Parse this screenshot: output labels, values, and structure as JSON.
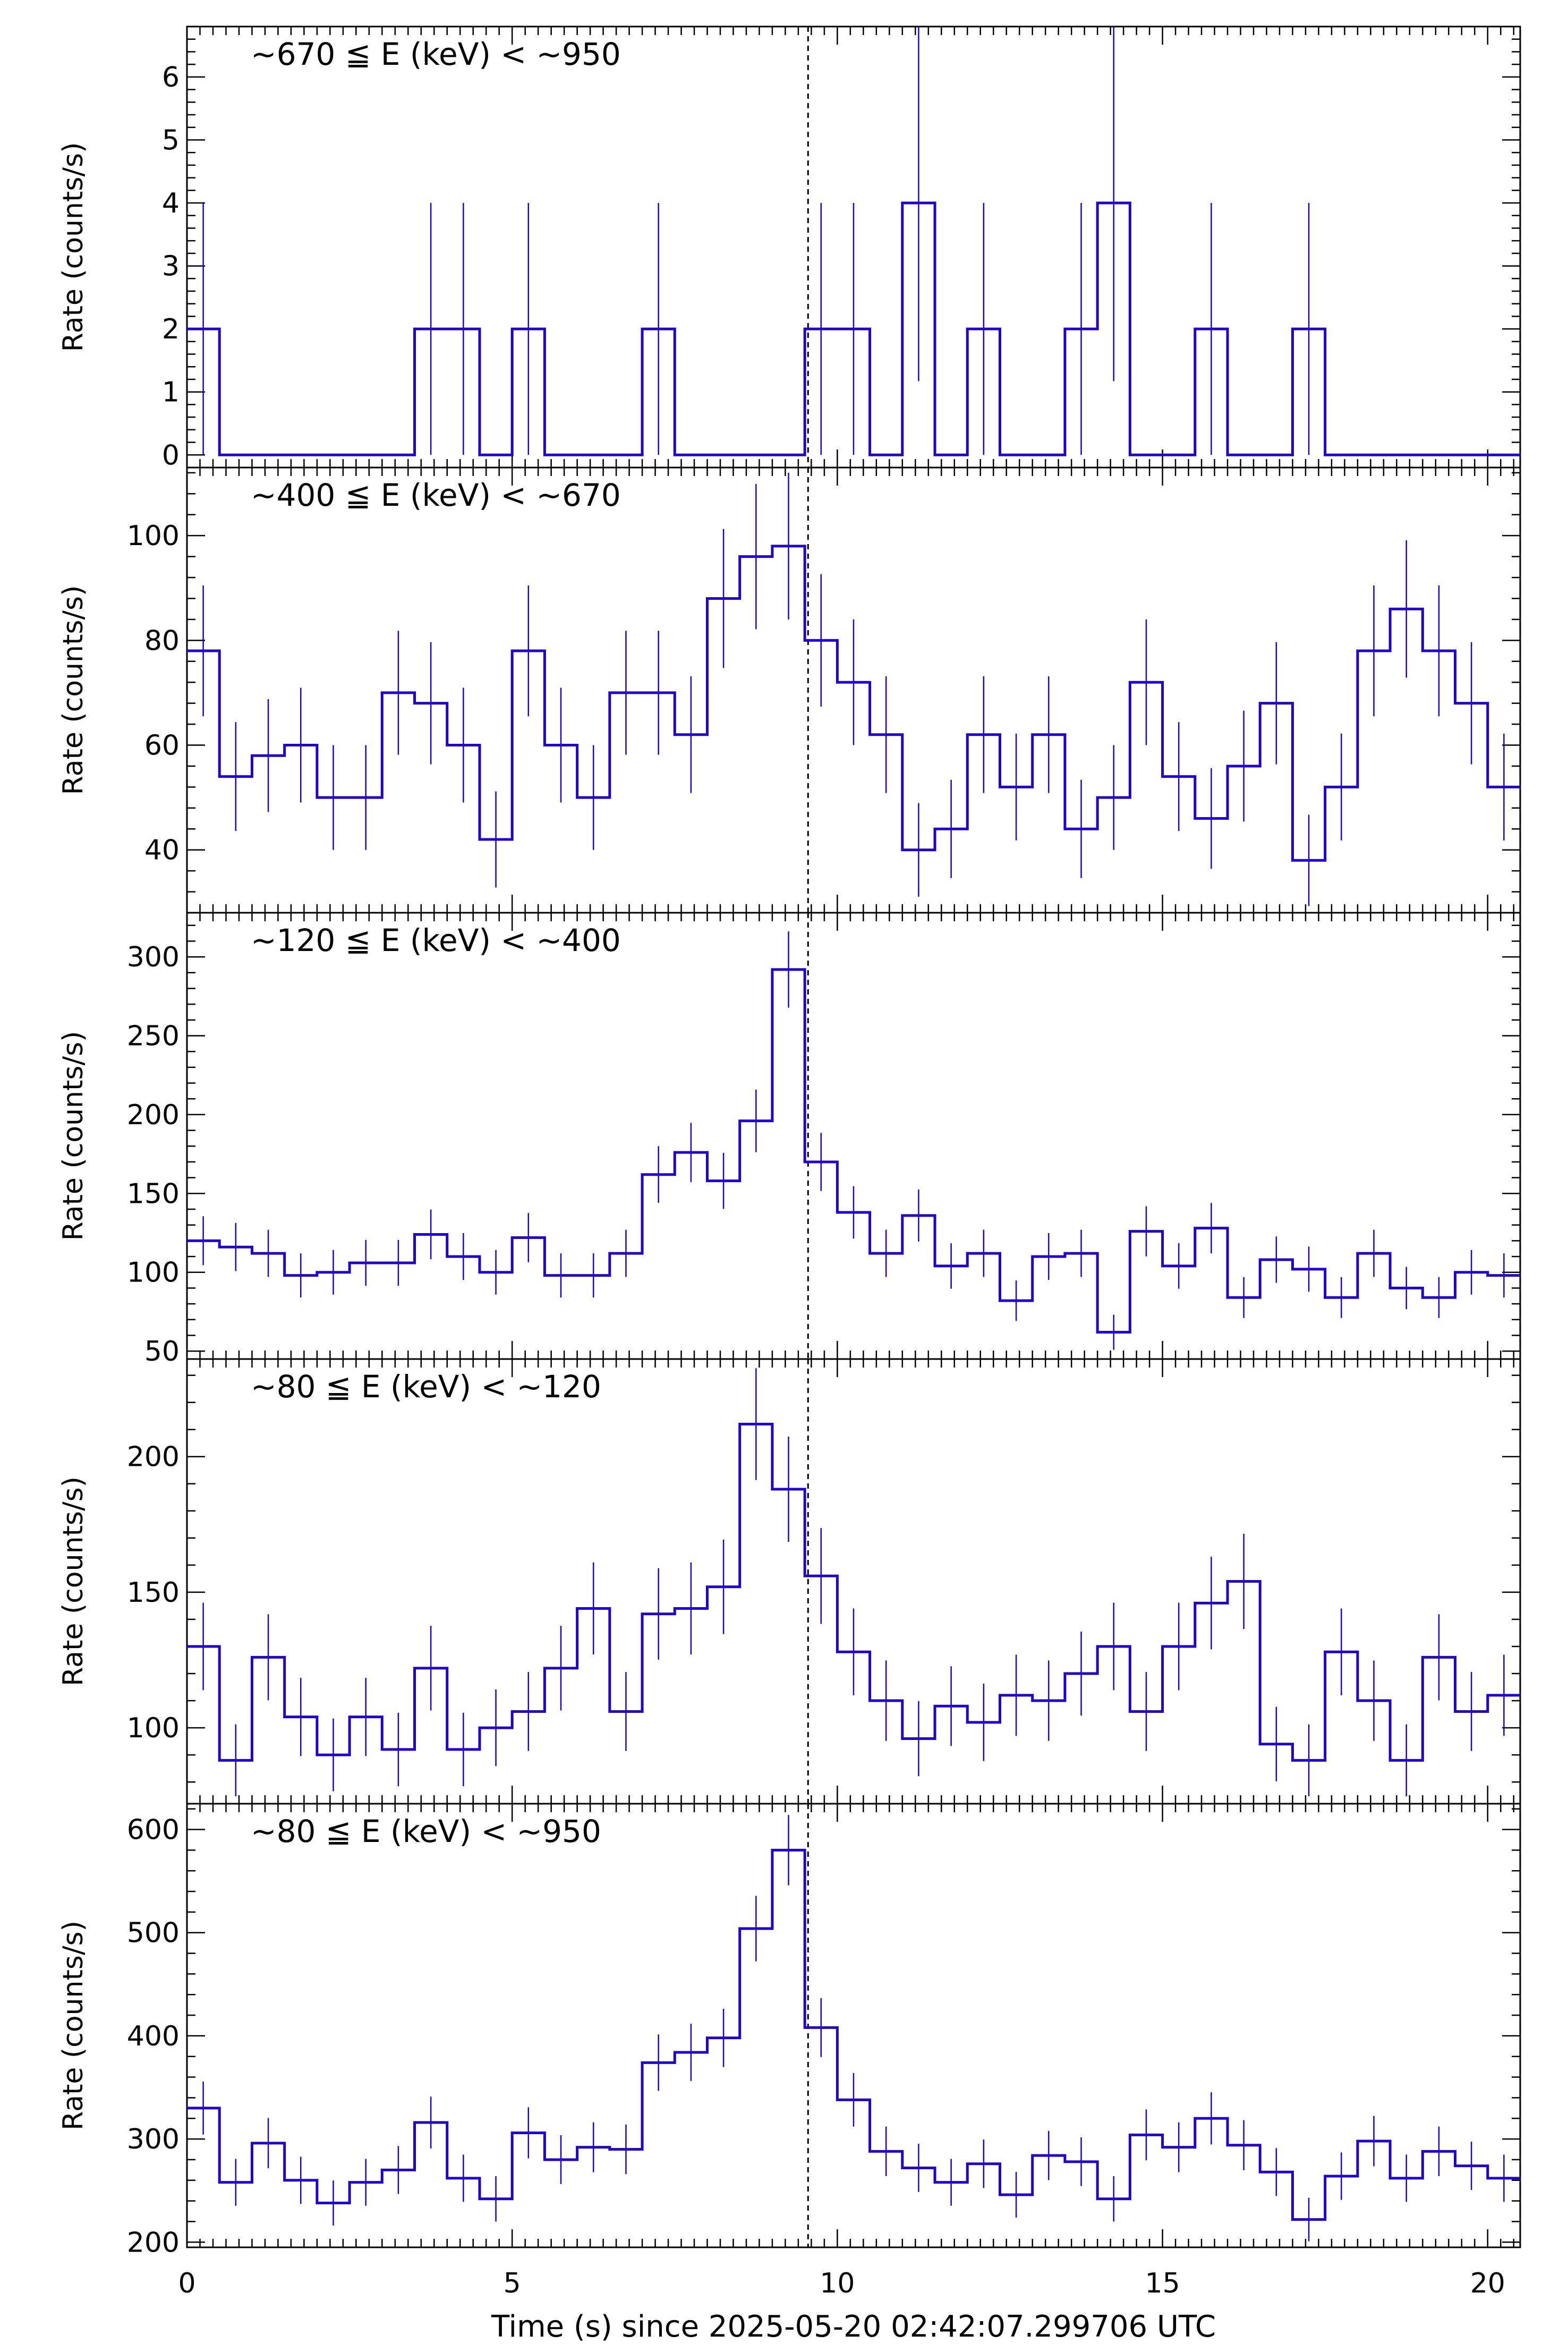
{
  "chart_data": [
    {
      "type": "line",
      "label": "~670 ≦ E (keV) < ~950",
      "ylabel": "Rate (counts/s)",
      "ylim": [
        -0.2,
        6.8
      ],
      "yticks": [
        0,
        1,
        2,
        3,
        4,
        5,
        6
      ],
      "color": "#2200cc",
      "values": [
        2,
        0,
        0,
        0,
        0,
        0,
        0,
        2,
        2,
        0,
        2,
        0,
        0,
        0,
        2,
        0,
        0,
        0,
        0,
        2,
        2,
        0,
        4,
        0,
        2,
        0,
        0,
        2,
        4,
        0,
        0,
        2,
        0,
        0,
        2,
        0,
        0,
        0,
        0,
        0,
        0
      ]
    },
    {
      "type": "line",
      "label": "~400 ≦ E (keV) < ~670",
      "ylabel": "Rate (counts/s)",
      "ylim": [
        28,
        113
      ],
      "yticks": [
        40,
        60,
        80,
        100
      ],
      "color": "#2200cc",
      "values": [
        78,
        54,
        58,
        60,
        50,
        50,
        70,
        68,
        60,
        42,
        78,
        60,
        50,
        70,
        70,
        62,
        88,
        96,
        98,
        80,
        72,
        62,
        40,
        44,
        62,
        52,
        62,
        44,
        50,
        72,
        54,
        46,
        56,
        68,
        38,
        52,
        78,
        86,
        78,
        68,
        52
      ]
    },
    {
      "type": "line",
      "label": "~120 ≦ E (keV) < ~400",
      "ylabel": "Rate (counts/s)",
      "ylim": [
        45,
        328
      ],
      "yticks": [
        50,
        100,
        150,
        200,
        250,
        300
      ],
      "color": "#2200cc",
      "values": [
        120,
        116,
        112,
        98,
        100,
        106,
        106,
        124,
        110,
        100,
        122,
        98,
        98,
        112,
        162,
        176,
        158,
        196,
        292,
        170,
        138,
        112,
        136,
        104,
        112,
        82,
        110,
        112,
        62,
        126,
        104,
        128,
        84,
        108,
        102,
        84,
        112,
        90,
        84,
        100,
        98
      ]
    },
    {
      "type": "line",
      "label": "~80 ≦ E (keV) < ~120",
      "ylabel": "Rate (counts/s)",
      "ylim": [
        72,
        236
      ],
      "yticks": [
        100,
        150,
        200
      ],
      "color": "#2200cc",
      "values": [
        130,
        88,
        126,
        104,
        90,
        104,
        92,
        122,
        92,
        100,
        106,
        122,
        144,
        106,
        142,
        144,
        152,
        212,
        188,
        156,
        128,
        110,
        96,
        108,
        102,
        112,
        110,
        120,
        130,
        106,
        130,
        146,
        154,
        94,
        88,
        128,
        110,
        88,
        126,
        106,
        112
      ]
    },
    {
      "type": "line",
      "label": "~80 ≦ E (keV) < ~950",
      "ylabel": "Rate (counts/s)",
      "ylim": [
        195,
        625
      ],
      "yticks": [
        200,
        300,
        400,
        500,
        600
      ],
      "color": "#2200cc",
      "values": [
        330,
        258,
        296,
        260,
        238,
        258,
        270,
        316,
        262,
        242,
        306,
        280,
        292,
        290,
        374,
        384,
        398,
        504,
        580,
        408,
        338,
        288,
        272,
        258,
        276,
        246,
        284,
        278,
        242,
        304,
        292,
        320,
        294,
        268,
        222,
        264,
        298,
        262,
        288,
        274,
        262
      ]
    }
  ],
  "x_axis": {
    "xlim": [
      0,
      20.5
    ],
    "bin_width": 0.5,
    "ticks": [
      0,
      5,
      10,
      15,
      20
    ],
    "xlabel": "Time (s) since 2025-05-20 02:42:07.299706 UTC",
    "marker_line_x": 9.55
  }
}
